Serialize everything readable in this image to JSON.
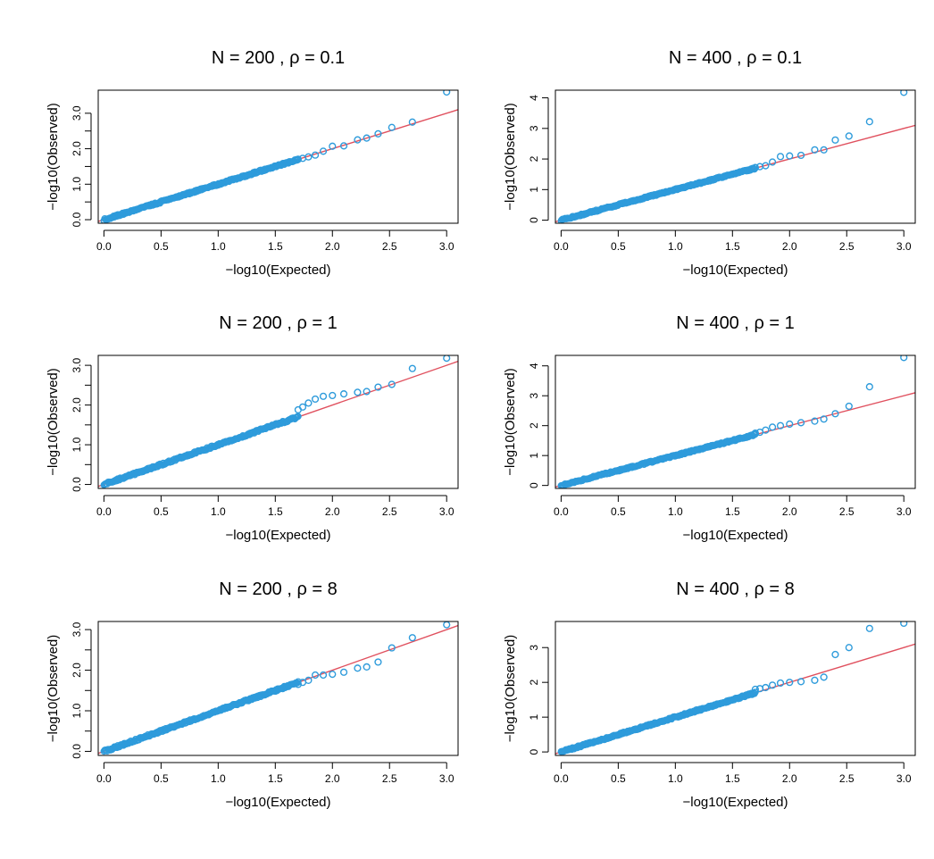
{
  "colors": {
    "points": "#2E9BDB",
    "reference_line": "#E0505E",
    "axis": "#000000"
  },
  "chart_data": [
    {
      "type": "scatter",
      "title": "N = 200 ,  ρ = 0.1",
      "xlabel": "−log10(Expected)",
      "ylabel": "−log10(Observed)",
      "xlim": [
        -0.05,
        3.1
      ],
      "ylim": [
        -0.1,
        3.65
      ],
      "xticks": [
        0,
        0.5,
        1,
        1.5,
        2,
        2.5,
        3
      ],
      "xtick_labels": [
        "0.0",
        "0.5",
        "1.0",
        "1.5",
        "2.0",
        "2.5",
        "3.0"
      ],
      "yticks": [
        0,
        0.5,
        1,
        1.5,
        2,
        2.5,
        3
      ],
      "ytick_labels": [
        "0.0",
        "",
        "1.0",
        "",
        "2.0",
        "",
        "3.0"
      ],
      "reference_line": {
        "intercept": 0,
        "slope": 1
      },
      "tail_points": [
        {
          "x": 1.7,
          "y": 1.7
        },
        {
          "x": 1.74,
          "y": 1.73
        },
        {
          "x": 1.79,
          "y": 1.77
        },
        {
          "x": 1.85,
          "y": 1.82
        },
        {
          "x": 1.92,
          "y": 1.93
        },
        {
          "x": 2.0,
          "y": 2.07
        },
        {
          "x": 2.1,
          "y": 2.08
        },
        {
          "x": 2.22,
          "y": 2.25
        },
        {
          "x": 2.3,
          "y": 2.3
        },
        {
          "x": 2.4,
          "y": 2.42
        },
        {
          "x": 2.52,
          "y": 2.6
        },
        {
          "x": 2.7,
          "y": 2.75
        },
        {
          "x": 3.0,
          "y": 3.6
        }
      ]
    },
    {
      "type": "scatter",
      "title": "N = 400 ,  ρ = 0.1",
      "xlabel": "−log10(Expected)",
      "ylabel": "−log10(Observed)",
      "xlim": [
        -0.05,
        3.1
      ],
      "ylim": [
        -0.1,
        4.25
      ],
      "xticks": [
        0,
        0.5,
        1,
        1.5,
        2,
        2.5,
        3
      ],
      "xtick_labels": [
        "0.0",
        "0.5",
        "1.0",
        "1.5",
        "2.0",
        "2.5",
        "3.0"
      ],
      "yticks": [
        0,
        1,
        2,
        3,
        4
      ],
      "ytick_labels": [
        "0",
        "1",
        "2",
        "3",
        "4"
      ],
      "reference_line": {
        "intercept": 0,
        "slope": 1
      },
      "tail_points": [
        {
          "x": 1.7,
          "y": 1.72
        },
        {
          "x": 1.74,
          "y": 1.75
        },
        {
          "x": 1.79,
          "y": 1.78
        },
        {
          "x": 1.85,
          "y": 1.9
        },
        {
          "x": 1.92,
          "y": 2.08
        },
        {
          "x": 2.0,
          "y": 2.1
        },
        {
          "x": 2.1,
          "y": 2.12
        },
        {
          "x": 2.22,
          "y": 2.3
        },
        {
          "x": 2.3,
          "y": 2.3
        },
        {
          "x": 2.4,
          "y": 2.62
        },
        {
          "x": 2.52,
          "y": 2.75
        },
        {
          "x": 2.7,
          "y": 3.22
        },
        {
          "x": 3.0,
          "y": 4.18
        }
      ]
    },
    {
      "type": "scatter",
      "title": "N = 200 ,  ρ = 1",
      "xlabel": "−log10(Expected)",
      "ylabel": "−log10(Observed)",
      "xlim": [
        -0.05,
        3.1
      ],
      "ylim": [
        -0.1,
        3.25
      ],
      "xticks": [
        0,
        0.5,
        1,
        1.5,
        2,
        2.5,
        3
      ],
      "xtick_labels": [
        "0.0",
        "0.5",
        "1.0",
        "1.5",
        "2.0",
        "2.5",
        "3.0"
      ],
      "yticks": [
        0,
        0.5,
        1,
        1.5,
        2,
        2.5,
        3
      ],
      "ytick_labels": [
        "0.0",
        "",
        "1.0",
        "",
        "2.0",
        "",
        "3.0"
      ],
      "reference_line": {
        "intercept": 0,
        "slope": 1
      },
      "tail_points": [
        {
          "x": 1.7,
          "y": 1.88
        },
        {
          "x": 1.74,
          "y": 1.95
        },
        {
          "x": 1.79,
          "y": 2.05
        },
        {
          "x": 1.85,
          "y": 2.15
        },
        {
          "x": 1.92,
          "y": 2.22
        },
        {
          "x": 2.0,
          "y": 2.24
        },
        {
          "x": 2.1,
          "y": 2.28
        },
        {
          "x": 2.22,
          "y": 2.32
        },
        {
          "x": 2.3,
          "y": 2.34
        },
        {
          "x": 2.4,
          "y": 2.45
        },
        {
          "x": 2.52,
          "y": 2.52
        },
        {
          "x": 2.7,
          "y": 2.92
        },
        {
          "x": 3.0,
          "y": 3.18
        }
      ]
    },
    {
      "type": "scatter",
      "title": "N = 400 ,  ρ = 1",
      "xlabel": "−log10(Expected)",
      "ylabel": "−log10(Observed)",
      "xlim": [
        -0.05,
        3.1
      ],
      "ylim": [
        -0.1,
        4.35
      ],
      "xticks": [
        0,
        0.5,
        1,
        1.5,
        2,
        2.5,
        3
      ],
      "xtick_labels": [
        "0.0",
        "0.5",
        "1.0",
        "1.5",
        "2.0",
        "2.5",
        "3.0"
      ],
      "yticks": [
        0,
        1,
        2,
        3,
        4
      ],
      "ytick_labels": [
        "0",
        "1",
        "2",
        "3",
        "4"
      ],
      "reference_line": {
        "intercept": 0,
        "slope": 1
      },
      "tail_points": [
        {
          "x": 1.7,
          "y": 1.75
        },
        {
          "x": 1.74,
          "y": 1.78
        },
        {
          "x": 1.79,
          "y": 1.85
        },
        {
          "x": 1.85,
          "y": 1.95
        },
        {
          "x": 1.92,
          "y": 2.0
        },
        {
          "x": 2.0,
          "y": 2.05
        },
        {
          "x": 2.1,
          "y": 2.1
        },
        {
          "x": 2.22,
          "y": 2.15
        },
        {
          "x": 2.3,
          "y": 2.22
        },
        {
          "x": 2.4,
          "y": 2.4
        },
        {
          "x": 2.52,
          "y": 2.65
        },
        {
          "x": 2.7,
          "y": 3.3
        },
        {
          "x": 3.0,
          "y": 4.28
        }
      ]
    },
    {
      "type": "scatter",
      "title": "N = 200 ,  ρ = 8",
      "xlabel": "−log10(Expected)",
      "ylabel": "−log10(Observed)",
      "xlim": [
        -0.05,
        3.1
      ],
      "ylim": [
        -0.1,
        3.2
      ],
      "xticks": [
        0,
        0.5,
        1,
        1.5,
        2,
        2.5,
        3
      ],
      "xtick_labels": [
        "0.0",
        "0.5",
        "1.0",
        "1.5",
        "2.0",
        "2.5",
        "3.0"
      ],
      "yticks": [
        0,
        0.5,
        1,
        1.5,
        2,
        2.5,
        3
      ],
      "ytick_labels": [
        "0.0",
        "",
        "1.0",
        "",
        "2.0",
        "",
        "3.0"
      ],
      "reference_line": {
        "intercept": 0,
        "slope": 1
      },
      "tail_points": [
        {
          "x": 1.7,
          "y": 1.65
        },
        {
          "x": 1.74,
          "y": 1.7
        },
        {
          "x": 1.79,
          "y": 1.75
        },
        {
          "x": 1.85,
          "y": 1.88
        },
        {
          "x": 1.92,
          "y": 1.88
        },
        {
          "x": 2.0,
          "y": 1.9
        },
        {
          "x": 2.1,
          "y": 1.95
        },
        {
          "x": 2.22,
          "y": 2.05
        },
        {
          "x": 2.3,
          "y": 2.08
        },
        {
          "x": 2.4,
          "y": 2.2
        },
        {
          "x": 2.52,
          "y": 2.55
        },
        {
          "x": 2.7,
          "y": 2.8
        },
        {
          "x": 3.0,
          "y": 3.12
        }
      ]
    },
    {
      "type": "scatter",
      "title": "N = 400 ,  ρ = 8",
      "xlabel": "−log10(Expected)",
      "ylabel": "−log10(Observed)",
      "xlim": [
        -0.05,
        3.1
      ],
      "ylim": [
        -0.1,
        3.75
      ],
      "xticks": [
        0,
        0.5,
        1,
        1.5,
        2,
        2.5,
        3
      ],
      "xtick_labels": [
        "0.0",
        "0.5",
        "1.0",
        "1.5",
        "2.0",
        "2.5",
        "3.0"
      ],
      "yticks": [
        0,
        1,
        2,
        3
      ],
      "ytick_labels": [
        "0",
        "1",
        "2",
        "3"
      ],
      "reference_line": {
        "intercept": 0,
        "slope": 1
      },
      "tail_points": [
        {
          "x": 1.7,
          "y": 1.8
        },
        {
          "x": 1.74,
          "y": 1.82
        },
        {
          "x": 1.79,
          "y": 1.85
        },
        {
          "x": 1.85,
          "y": 1.92
        },
        {
          "x": 1.92,
          "y": 1.98
        },
        {
          "x": 2.0,
          "y": 2.0
        },
        {
          "x": 2.1,
          "y": 2.02
        },
        {
          "x": 2.22,
          "y": 2.06
        },
        {
          "x": 2.3,
          "y": 2.15
        },
        {
          "x": 2.4,
          "y": 2.8
        },
        {
          "x": 2.52,
          "y": 3.0
        },
        {
          "x": 2.7,
          "y": 3.55
        },
        {
          "x": 3.0,
          "y": 3.7
        }
      ]
    }
  ]
}
